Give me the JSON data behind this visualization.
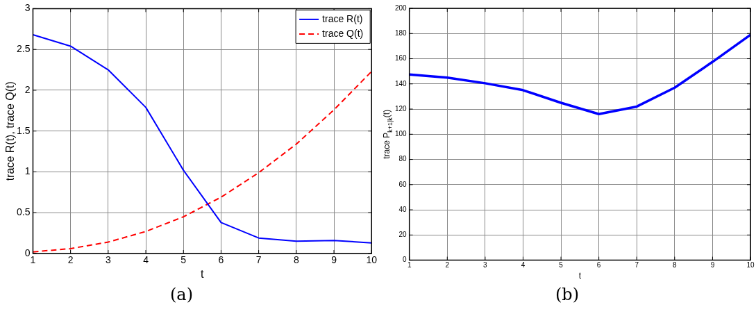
{
  "chart_data": [
    {
      "type": "line",
      "xlabel": "t",
      "ylabel": "trace R(t), trace Q(t)",
      "x": [
        1,
        2,
        3,
        4,
        5,
        6,
        7,
        8,
        9,
        10
      ],
      "xlim": [
        1,
        10
      ],
      "xticks": [
        1,
        2,
        3,
        4,
        5,
        6,
        7,
        8,
        9,
        10
      ],
      "ylim": [
        0,
        3
      ],
      "yticks": [
        0,
        0.5,
        1,
        1.5,
        2,
        2.5,
        3
      ],
      "grid": true,
      "legend": "top right",
      "marker": "none",
      "annotations": [
        "(a)"
      ],
      "series": [
        {
          "name": "trace R(t)",
          "color": "#0000ff",
          "line_style": "solid",
          "values": [
            2.68,
            2.54,
            2.25,
            1.79,
            1.02,
            0.38,
            0.19,
            0.15,
            0.16,
            0.13
          ]
        },
        {
          "name": "trace Q(t)",
          "color": "#ff0000",
          "line_style": "dashed",
          "values": [
            0.02,
            0.06,
            0.14,
            0.27,
            0.45,
            0.69,
            0.99,
            1.34,
            1.76,
            2.23
          ]
        }
      ]
    },
    {
      "type": "line",
      "xlabel": "t",
      "ylabel": "trace P$_{k+1|k}$(t)",
      "x": [
        1,
        2,
        3,
        4,
        5,
        6,
        7,
        8,
        9,
        10
      ],
      "xlim": [
        1,
        10
      ],
      "xticks": [
        1,
        2,
        3,
        4,
        5,
        6,
        7,
        8,
        9,
        10
      ],
      "ylim": [
        0,
        200
      ],
      "yticks": [
        0,
        20,
        40,
        60,
        80,
        100,
        120,
        140,
        160,
        180,
        200
      ],
      "grid": true,
      "marker": "none",
      "annotations": [
        "(b)"
      ],
      "series": [
        {
          "color": "#0000ff",
          "line_style": "solid",
          "values": [
            147.5,
            145,
            140.5,
            135,
            125,
            116,
            122,
            137,
            157.5,
            179
          ]
        }
      ]
    }
  ]
}
